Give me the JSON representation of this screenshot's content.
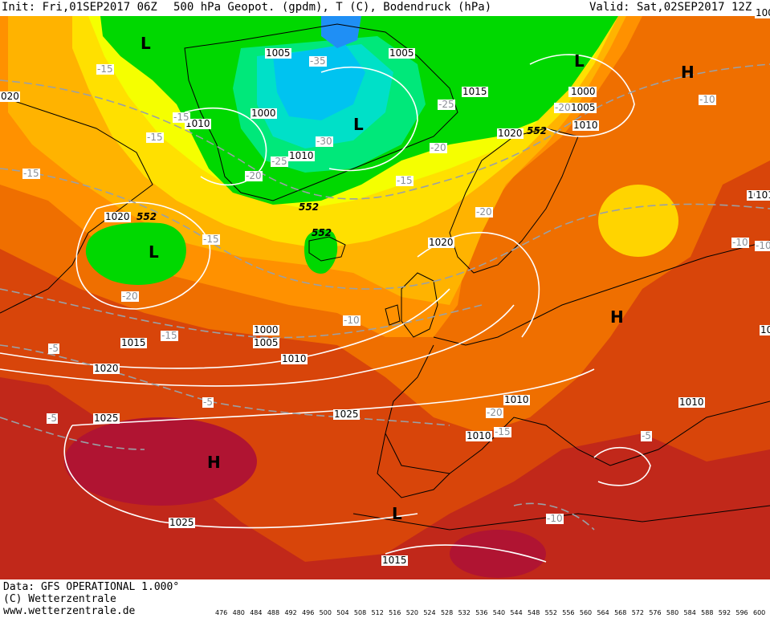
{
  "header": {
    "init": "Init: Fri,01SEP2017 06Z",
    "title": "500 hPa Geopot. (gpdm), T (C), Bodendruck (hPa)",
    "valid": "Valid: Sat,02SEP2017 12Z"
  },
  "footer": {
    "data_source": "Data: GFS OPERATIONAL 1.000°",
    "copyright": "(C) Wetterzentrale",
    "url": "www.wetterzentrale.de"
  },
  "legend": {
    "ticks": [
      "476",
      "480",
      "484",
      "488",
      "492",
      "496",
      "500",
      "504",
      "508",
      "512",
      "516",
      "520",
      "524",
      "528",
      "532",
      "536",
      "540",
      "544",
      "548",
      "552",
      "556",
      "560",
      "564",
      "568",
      "572",
      "576",
      "580",
      "584",
      "588",
      "592",
      "596",
      "600"
    ],
    "colors": [
      "#4b0055",
      "#6d0073",
      "#8a0095",
      "#a800b8",
      "#c400d4",
      "#a700e0",
      "#8a16e8",
      "#6428f0",
      "#3f3cf5",
      "#1f55f5",
      "#0079f5",
      "#00a0f2",
      "#00c3f0",
      "#00dfe0",
      "#00e8b4",
      "#00e67e",
      "#00e24a",
      "#00dc22",
      "#00d800",
      "#f5ff00",
      "#ffea00",
      "#ffd400",
      "#ffbe00",
      "#ffa700",
      "#ff9100",
      "#f87a00",
      "#ef6400",
      "#e14e00",
      "#d13a0a",
      "#c1281a",
      "#b01432",
      "#c00a6a"
    ]
  },
  "map": {
    "pressure_labels": [
      "1005",
      "1005",
      "1000",
      "1000",
      "1005",
      "1010",
      "1015",
      "1010",
      "1020",
      "1010",
      "1000",
      "1000",
      "1005",
      "1015",
      "1020",
      "1010",
      "1010",
      "1020",
      "1025",
      "1025",
      "1025",
      "1015",
      "1010",
      "1010",
      "1020",
      "1010",
      "1010",
      "1005"
    ],
    "temperature_labels": [
      "-15",
      "-15",
      "-15",
      "-15",
      "-20",
      "-15",
      "-35",
      "-25",
      "-30",
      "-25",
      "-20",
      "-20",
      "-15",
      "-20",
      "-20",
      "-15",
      "-10",
      "-10",
      "-5",
      "-5",
      "-5",
      "-20",
      "-15",
      "-10",
      "-5",
      "-10",
      "-10"
    ],
    "geopotential_labels": [
      "552",
      "552",
      "552",
      "552"
    ],
    "pressure_centers": [
      "L",
      "L",
      "L",
      "L",
      "L",
      "H",
      "H",
      "H"
    ],
    "partial_labels": [
      "020",
      "101"
    ]
  },
  "colors": {
    "green": "#00d800",
    "light_green": "#00e24a",
    "cyan": "#00c3f0",
    "yellow": "#ffee00",
    "orange": "#ffa700",
    "red": "#e14e00",
    "dark_red": "#c1281a",
    "magenta": "#b01432"
  }
}
